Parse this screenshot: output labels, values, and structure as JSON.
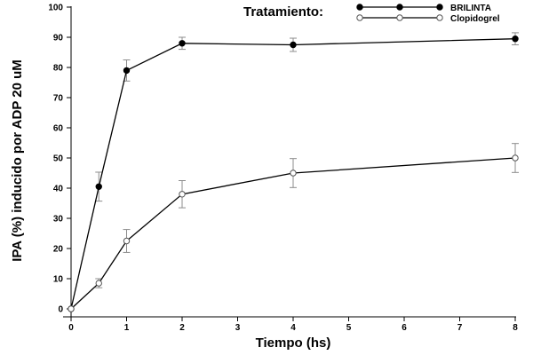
{
  "chart_data": {
    "type": "line",
    "xlabel": "Tiempo (hs)",
    "ylabel": "IPA (%) inducido por ADP 20 uM",
    "xlim": [
      0,
      8
    ],
    "ylim": [
      0,
      100
    ],
    "xticks": [
      "0",
      "1",
      "2",
      "3",
      "4",
      "5",
      "6",
      "7",
      "8"
    ],
    "yticks": [
      "0",
      "10",
      "20",
      "30",
      "40",
      "50",
      "60",
      "70",
      "80",
      "90",
      "100"
    ],
    "grid": false,
    "legend": {
      "title": "Tratamiento:",
      "placement": "top-right"
    },
    "series": [
      {
        "name": "BRILINTA",
        "marker": "filled-circle",
        "color": "#000000",
        "x": [
          0,
          0.5,
          1,
          2,
          4,
          8
        ],
        "y": [
          0,
          40.5,
          79,
          88,
          87.5,
          89.5
        ],
        "error": [
          0,
          4.8,
          3.5,
          2,
          2.2,
          2
        ]
      },
      {
        "name": "Clopidogrel",
        "marker": "open-circle",
        "color": "#000000",
        "x": [
          0,
          0.5,
          1,
          2,
          4,
          8
        ],
        "y": [
          0,
          8.5,
          22.5,
          38,
          45,
          50
        ],
        "error": [
          0,
          1.5,
          3.8,
          4.5,
          4.8,
          4.8
        ]
      }
    ],
    "error_bar_color": "#8c8c8c"
  }
}
